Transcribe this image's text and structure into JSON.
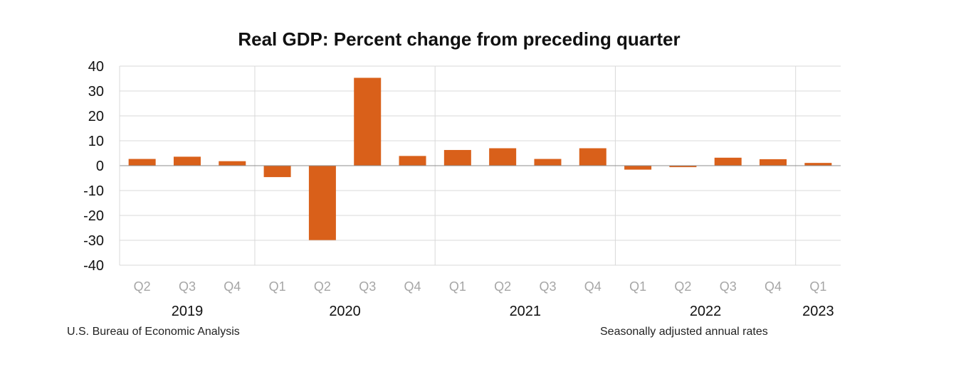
{
  "chart_data": {
    "type": "bar",
    "title": "Real GDP:  Percent change from preceding quarter",
    "categories": [
      "Q2",
      "Q3",
      "Q4",
      "Q1",
      "Q2",
      "Q3",
      "Q4",
      "Q1",
      "Q2",
      "Q3",
      "Q4",
      "Q1",
      "Q2",
      "Q3",
      "Q4",
      "Q1"
    ],
    "years": [
      {
        "label": "2019",
        "start": 0,
        "end": 2
      },
      {
        "label": "2020",
        "start": 3,
        "end": 6
      },
      {
        "label": "2021",
        "start": 7,
        "end": 10
      },
      {
        "label": "2022",
        "start": 11,
        "end": 14
      },
      {
        "label": "2023",
        "start": 15,
        "end": 15
      }
    ],
    "values": [
      2.7,
      3.6,
      1.8,
      -4.6,
      -29.9,
      35.3,
      3.9,
      6.3,
      7.0,
      2.7,
      7.0,
      -1.6,
      -0.6,
      3.2,
      2.6,
      1.1
    ],
    "ylim": [
      -40,
      40
    ],
    "yticks": [
      -40,
      -30,
      -20,
      -10,
      0,
      10,
      20,
      30,
      40
    ],
    "xlabel": "",
    "ylabel": "",
    "bar_color": "#d9601a",
    "grid": true
  },
  "footer": {
    "source": "U.S. Bureau of Economic Analysis",
    "note": "Seasonally adjusted annual rates"
  }
}
